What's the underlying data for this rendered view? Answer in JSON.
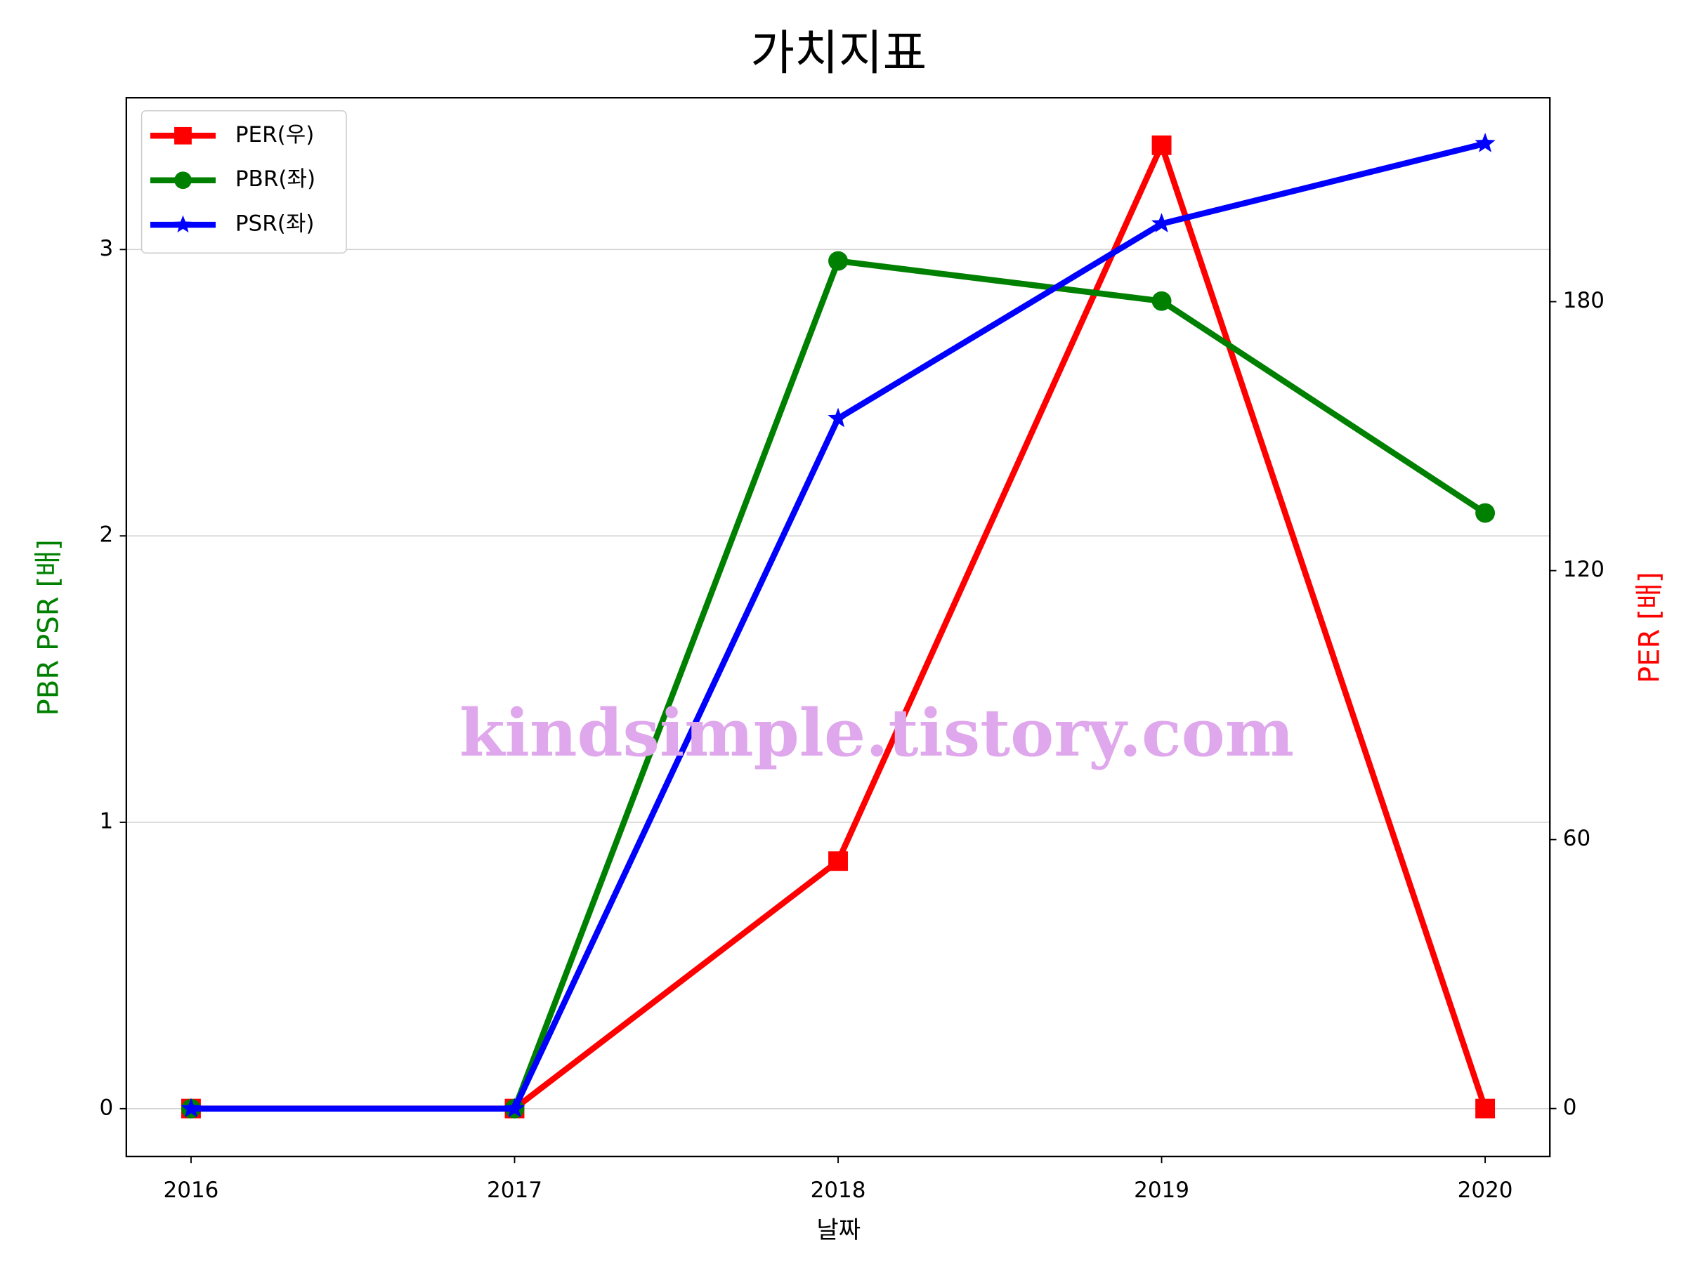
{
  "chart_data": {
    "type": "line",
    "title": "가치지표",
    "xlabel": "날짜",
    "ylabel": "PBR PSR [배]",
    "y2label": "PER [배]",
    "watermark": "kindsimple.tistory.com",
    "x": [
      2016,
      2017,
      2018,
      2019,
      2020
    ],
    "xlim": [
      2015.8,
      2020.2
    ],
    "xticks": [
      2016,
      2017,
      2018,
      2019,
      2020
    ],
    "ylim": [
      -0.167,
      3.53
    ],
    "yticks": [
      0,
      1,
      2,
      3
    ],
    "y2lim": [
      -10.7,
      225.5
    ],
    "y2ticks": [
      0,
      60,
      120,
      180
    ],
    "grid": true,
    "legend": "upper left",
    "series": [
      {
        "name": "PER(우)",
        "color": "#ff0000",
        "marker": "square",
        "axis": "y2",
        "values": [
          0,
          0,
          55.2,
          214.9,
          0
        ]
      },
      {
        "name": "PBR(좌)",
        "color": "#008000",
        "marker": "circle",
        "values": [
          0,
          0,
          2.96,
          2.82,
          2.08
        ]
      },
      {
        "name": "PSR(좌)",
        "color": "#0000ff",
        "marker": "star",
        "values": [
          0,
          0,
          2.41,
          3.09,
          3.37
        ]
      }
    ]
  }
}
